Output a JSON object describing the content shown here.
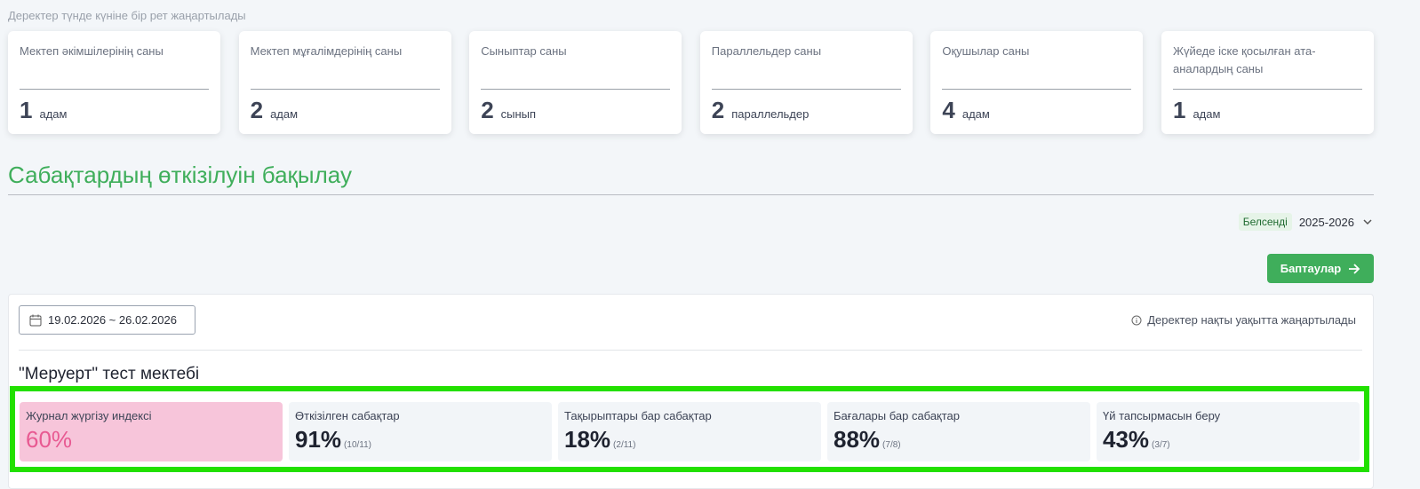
{
  "header": {
    "note": "Деректер түнде күніне бір рет жаңартылады"
  },
  "stats": [
    {
      "title": "Мектеп әкімшілерінің саны",
      "value": "1",
      "unit": "адам"
    },
    {
      "title": "Мектеп мұғалімдерінің саны",
      "value": "2",
      "unit": "адам"
    },
    {
      "title": "Сыныптар саны",
      "value": "2",
      "unit": "сынып"
    },
    {
      "title": "Параллельдер саны",
      "value": "2",
      "unit": "параллельдер"
    },
    {
      "title": "Оқушылар саны",
      "value": "4",
      "unit": "адам"
    },
    {
      "title": "Жүйеде іске қосылған ата-аналардың саны",
      "value": "1",
      "unit": "адам"
    }
  ],
  "section": {
    "title": "Сабақтардың өткізілуін бақылау"
  },
  "filter": {
    "status": "Белсенді",
    "year": "2025-2026"
  },
  "button": {
    "label": "Баптаулар"
  },
  "panel": {
    "date_range": "19.02.2026 ~ 26.02.2026",
    "info": "Деректер нақты уақытта жаңартылады",
    "school": "\"Меруерт\" тест мектебі",
    "metrics": [
      {
        "title": "Журнал жүргізу индексі",
        "value": "60%"
      },
      {
        "title": "Өткізілген сабақтар",
        "value": "91%",
        "detail": "(10/11)"
      },
      {
        "title": "Тақырыптары бар сабақтар",
        "value": "18%",
        "detail": "(2/11)"
      },
      {
        "title": "Бағалары бар сабақтар",
        "value": "88%",
        "detail": "(7/8)"
      },
      {
        "title": "Үй тапсырмасын беру",
        "value": "43%",
        "detail": "(3/7)"
      }
    ]
  }
}
